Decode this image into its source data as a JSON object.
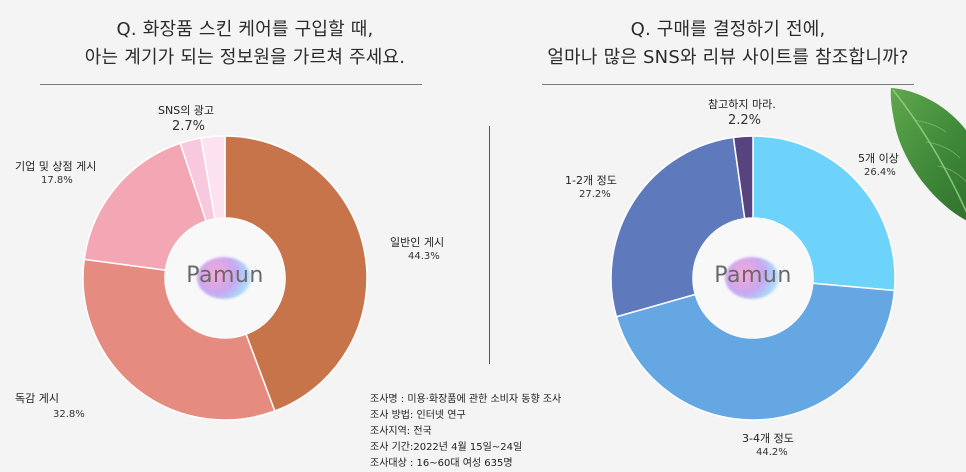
{
  "chart_data": [
    {
      "type": "pie",
      "title": "Q. 화장품 스킨 케어를 구입할 때,",
      "subtitle": "아는 계기가 되는 정보원을 가르쳐 주세요.",
      "center_logo": "Pamun",
      "slices": [
        {
          "label": "일반인 게시",
          "value": 44.3,
          "value_text": "44.3%",
          "color": "#c8744b"
        },
        {
          "label": "독감 게시",
          "value": 32.8,
          "value_text": "32.8%",
          "color": "#e58b80"
        },
        {
          "label": "기업 및 상점 게시",
          "value": 17.8,
          "value_text": "17.8%",
          "color": "#f3a6b4"
        },
        {
          "label": "",
          "value": 2.4,
          "value_text": "",
          "color": "#f8c8dc"
        },
        {
          "label": "SNS의 광고",
          "value": 2.7,
          "value_text": "2.7%",
          "color": "#fbe2ee"
        }
      ]
    },
    {
      "type": "pie",
      "title": "Q. 구매를 결정하기 전에,",
      "subtitle": "얼마나 많은 SNS와 리뷰 사이트를 참조합니까?",
      "center_logo": "Pamun",
      "slices": [
        {
          "label": "5개 이상",
          "value": 26.4,
          "value_text": "26.4%",
          "color": "#6dd3fb"
        },
        {
          "label": "3-4개 정도",
          "value": 44.2,
          "value_text": "44.2%",
          "color": "#64a7e2"
        },
        {
          "label": "1-2개 정도",
          "value": 27.2,
          "value_text": "27.2%",
          "color": "#5f79bd"
        },
        {
          "label": "참고하지 마라.",
          "value": 2.2,
          "value_text": "2.2%",
          "color": "#57447f"
        }
      ]
    }
  ],
  "survey": {
    "lines": [
      "조사명 : 미용·화장품에 관한 소비자 동향 조사",
      "조사 방법: 인터넷 연구",
      "조사지역: 전국",
      "조사 기간:2022년 4월 15일~24일",
      "조사대상 : 16~60대 여성 635명"
    ]
  },
  "colors": {
    "background": "#f4f4f5",
    "leaf": "#3f8a3a"
  }
}
